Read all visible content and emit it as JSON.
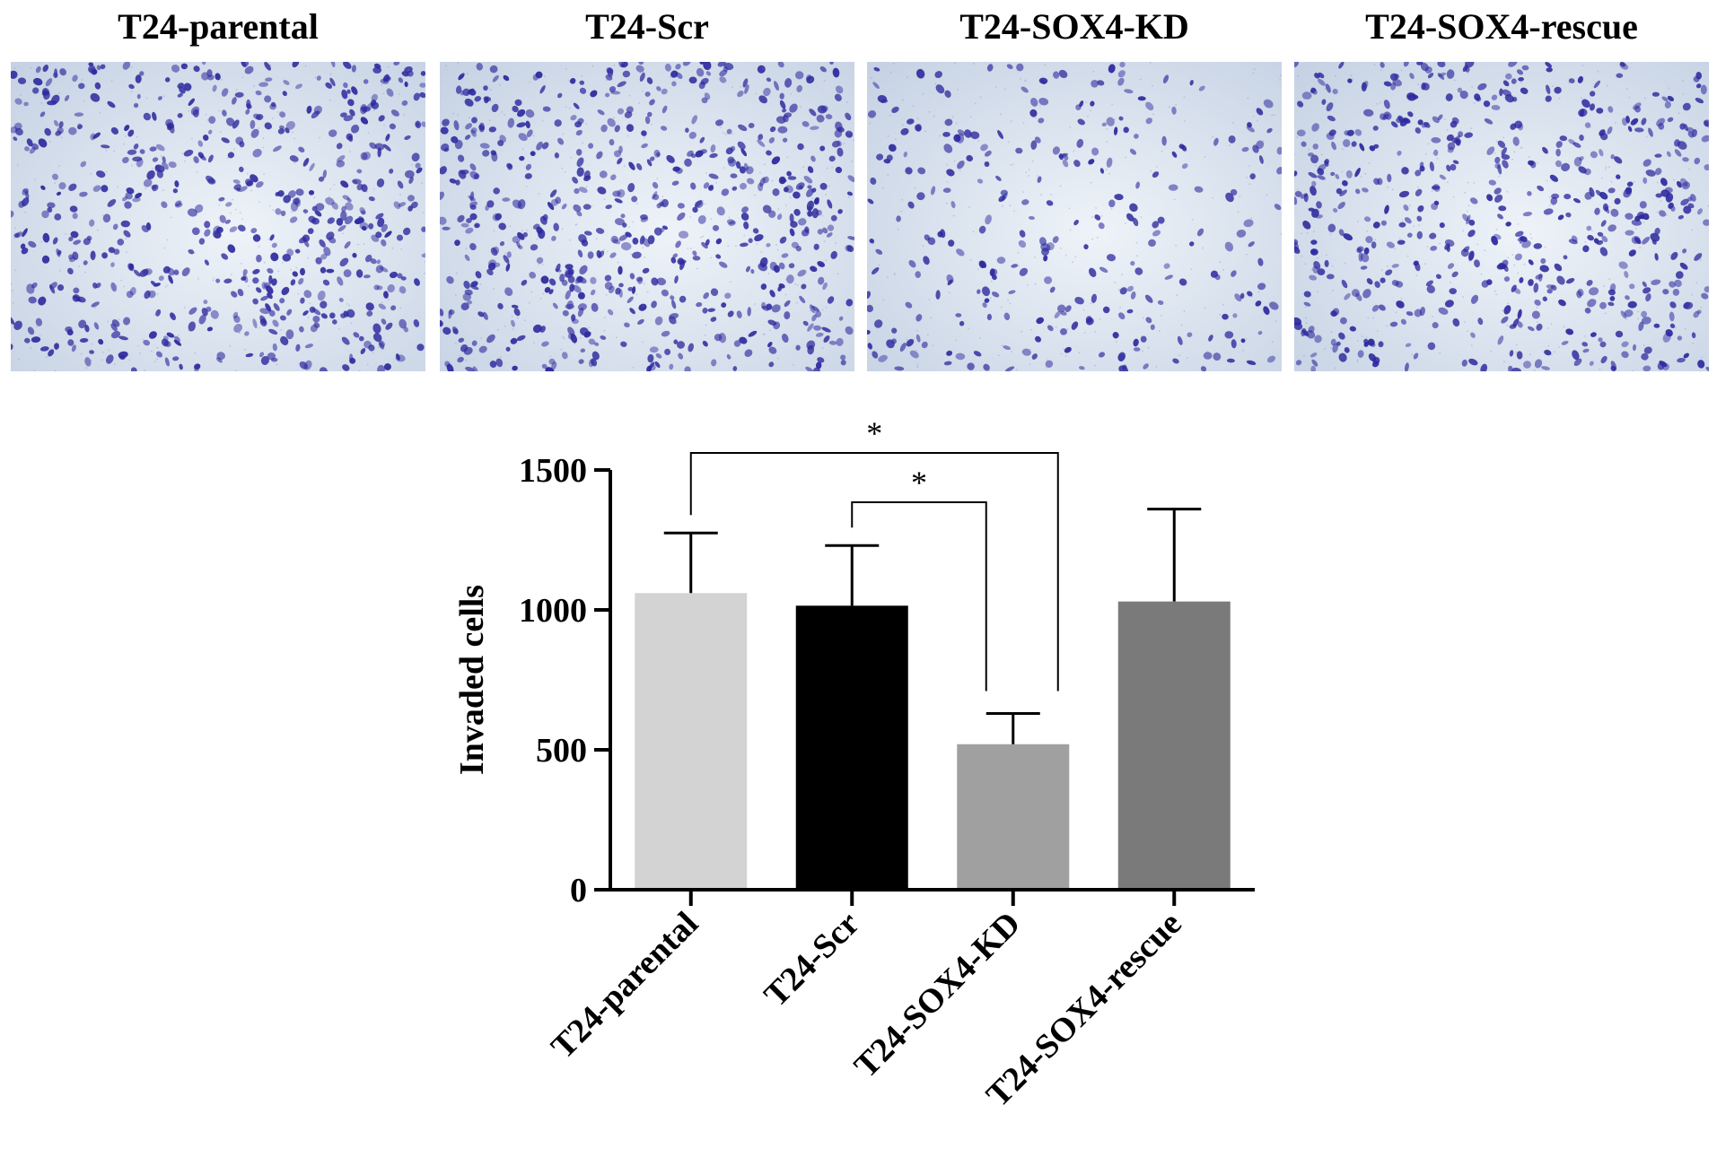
{
  "panels": [
    {
      "title": "T24-parental",
      "density": 0.95
    },
    {
      "title": "T24-Scr",
      "density": 1.0
    },
    {
      "title": "T24-SOX4-KD",
      "density": 0.45
    },
    {
      "title": "T24-SOX4-rescue",
      "density": 0.9
    }
  ],
  "colors": {
    "cell": "#2d2a9e",
    "background_light": "#eef3f8",
    "background_dark": "#c6d2e4"
  },
  "chart_data": {
    "type": "bar",
    "categories": [
      "T24-parental",
      "T24-Scr",
      "T24-SOX4-KD",
      "T24-SOX4-rescue"
    ],
    "values": [
      1060,
      1015,
      520,
      1030
    ],
    "errors": [
      215,
      215,
      110,
      330
    ],
    "bar_colors": [
      "#d3d3d3",
      "#000000",
      "#a0a0a0",
      "#7a7a7a"
    ],
    "ylabel": "Invaded cells",
    "ylim": [
      0,
      1500
    ],
    "yticks": [
      "0",
      "500",
      "1000",
      "1500"
    ],
    "significance": [
      {
        "from": 0,
        "to": 2,
        "label": "*"
      },
      {
        "from": 1,
        "to": 2,
        "label": "*"
      }
    ],
    "grid": false
  }
}
